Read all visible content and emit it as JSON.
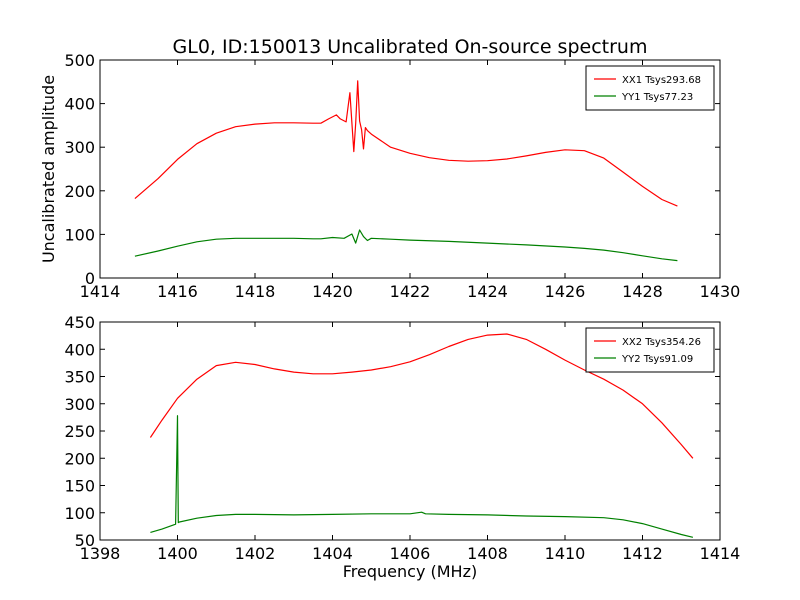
{
  "chart_data": {
    "title": "GL0, ID:150013 Uncalibrated On-source spectrum",
    "charts": [
      {
        "type": "line",
        "xlabel": "",
        "ylabel": "Uncalibrated amplitude",
        "xlim": [
          1414,
          1430
        ],
        "ylim": [
          0,
          500
        ],
        "xticks": [
          1414,
          1416,
          1418,
          1420,
          1422,
          1424,
          1426,
          1428,
          1430
        ],
        "yticks": [
          0,
          100,
          200,
          300,
          400,
          500
        ],
        "legend_position": "top-right",
        "series": [
          {
            "name": "XX1 Tsys293.68",
            "color": "#ff0000",
            "x": [
              1414.9,
              1415.5,
              1416.0,
              1416.5,
              1417.0,
              1417.5,
              1418.0,
              1418.5,
              1419.0,
              1419.5,
              1419.7,
              1419.9,
              1420.1,
              1420.2,
              1420.35,
              1420.45,
              1420.55,
              1420.6,
              1420.65,
              1420.7,
              1420.75,
              1420.8,
              1420.85,
              1420.9,
              1421.0,
              1421.5,
              1422.0,
              1422.5,
              1423.0,
              1423.5,
              1424.0,
              1424.5,
              1425.0,
              1425.5,
              1426.0,
              1426.5,
              1427.0,
              1427.5,
              1428.0,
              1428.5,
              1428.9
            ],
            "y": [
              182,
              228,
              272,
              308,
              332,
              347,
              353,
              356,
              356,
              355,
              355,
              365,
              374,
              365,
              358,
              425,
              290,
              355,
              452,
              360,
              340,
              296,
              345,
              338,
              330,
              300,
              286,
              276,
              270,
              268,
              269,
              273,
              280,
              288,
              294,
              292,
              275,
              243,
              210,
              180,
              165
            ]
          },
          {
            "name": "YY1 Tsys77.23",
            "color": "#008000",
            "x": [
              1414.9,
              1415.5,
              1416.0,
              1416.5,
              1417.0,
              1417.5,
              1418.0,
              1418.5,
              1419.0,
              1419.5,
              1419.7,
              1420.0,
              1420.3,
              1420.5,
              1420.6,
              1420.7,
              1420.8,
              1420.9,
              1421.0,
              1421.5,
              1422.0,
              1423.0,
              1424.0,
              1425.0,
              1426.0,
              1426.5,
              1427.0,
              1427.5,
              1428.0,
              1428.5,
              1428.9
            ],
            "y": [
              50,
              62,
              73,
              83,
              89,
              91,
              91,
              91,
              91,
              90,
              90,
              93,
              91,
              101,
              80,
              110,
              95,
              86,
              91,
              89,
              87,
              84,
              80,
              76,
              71,
              68,
              64,
              58,
              51,
              44,
              40
            ]
          }
        ]
      },
      {
        "type": "line",
        "xlabel": "Frequency (MHz)",
        "ylabel": "",
        "xlim": [
          1398,
          1414
        ],
        "ylim": [
          50,
          450
        ],
        "xticks": [
          1398,
          1400,
          1402,
          1404,
          1406,
          1408,
          1410,
          1412,
          1414
        ],
        "yticks": [
          50,
          100,
          150,
          200,
          250,
          300,
          350,
          400,
          450
        ],
        "legend_position": "top-right",
        "series": [
          {
            "name": "XX2 Tsys354.26",
            "color": "#ff0000",
            "x": [
              1399.3,
              1399.6,
              1400.0,
              1400.5,
              1401.0,
              1401.5,
              1402.0,
              1402.5,
              1403.0,
              1403.5,
              1404.0,
              1404.5,
              1405.0,
              1405.5,
              1406.0,
              1406.5,
              1407.0,
              1407.5,
              1408.0,
              1408.5,
              1409.0,
              1409.5,
              1410.0,
              1410.5,
              1411.0,
              1411.5,
              1412.0,
              1412.5,
              1413.0,
              1413.3
            ],
            "y": [
              238,
              270,
              310,
              345,
              370,
              376,
              372,
              364,
              358,
              355,
              355,
              358,
              362,
              368,
              377,
              390,
              405,
              418,
              426,
              428,
              418,
              400,
              380,
              362,
              345,
              325,
              300,
              265,
              225,
              200
            ]
          },
          {
            "name": "YY2 Tsys91.09",
            "color": "#008000",
            "x": [
              1399.3,
              1399.6,
              1399.95,
              1400.0,
              1400.02,
              1400.05,
              1400.5,
              1401.0,
              1401.5,
              1402.0,
              1403.0,
              1404.0,
              1405.0,
              1406.0,
              1406.3,
              1406.4,
              1407.0,
              1408.0,
              1409.0,
              1410.0,
              1411.0,
              1411.5,
              1412.0,
              1412.5,
              1413.0,
              1413.3
            ],
            "y": [
              64,
              70,
              79,
              278,
              82,
              83,
              90,
              95,
              97,
              97,
              96,
              97,
              98,
              98,
              101,
              98,
              97,
              96,
              94,
              93,
              91,
              87,
              80,
              70,
              60,
              55
            ]
          }
        ]
      }
    ]
  }
}
